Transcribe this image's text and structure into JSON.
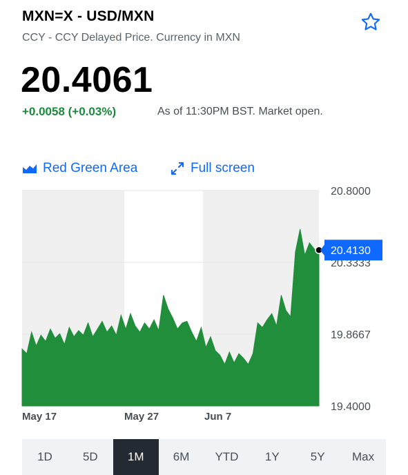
{
  "header": {
    "ticker": "MXN=X - USD/MXN",
    "subtitle": "CCY - CCY Delayed Price. Currency in MXN",
    "star_icon": "star-outline-icon"
  },
  "quote": {
    "price": "20.4061",
    "change": "+0.0058 (+0.03%)",
    "as_of": "As of 11:30PM BST. Market open."
  },
  "controls": {
    "chart_type_icon": "area-chart-icon",
    "chart_type_label": "Red Green Area",
    "fullscreen_icon": "expand-icon",
    "fullscreen_label": "Full screen"
  },
  "colors": {
    "up": "#1a8a3c",
    "area_fill": "#208e3a",
    "accent": "#0f69ff",
    "active_range": "#232a31"
  },
  "chart_data": {
    "type": "area",
    "ylim": [
      19.4,
      20.8
    ],
    "y_ticks": [
      "20.8000",
      "20.3333",
      "19.8667",
      "19.4000"
    ],
    "x_tick_labels": [
      "May 17",
      "May 27",
      "Jun 7"
    ],
    "current_value_label": "20.4130",
    "values": [
      19.77,
      19.74,
      19.88,
      19.79,
      19.86,
      19.82,
      19.9,
      19.84,
      19.87,
      19.8,
      19.91,
      19.85,
      19.89,
      19.86,
      19.94,
      19.85,
      19.9,
      19.95,
      19.88,
      19.92,
      19.86,
      19.99,
      19.9,
      20.0,
      19.92,
      19.88,
      19.94,
      19.9,
      19.96,
      19.89,
      20.12,
      20.03,
      19.97,
      19.9,
      19.94,
      19.95,
      19.88,
      19.82,
      19.91,
      19.78,
      19.85,
      19.76,
      19.73,
      19.67,
      19.75,
      19.68,
      19.74,
      19.71,
      19.67,
      19.74,
      19.94,
      19.91,
      19.96,
      20.0,
      19.92,
      20.12,
      20.02,
      19.98,
      20.4,
      20.55,
      20.38,
      20.46,
      20.42,
      20.413
    ],
    "range_buttons": [
      "1D",
      "5D",
      "1M",
      "6M",
      "YTD",
      "1Y",
      "5Y",
      "Max"
    ],
    "active_range": "1M"
  }
}
